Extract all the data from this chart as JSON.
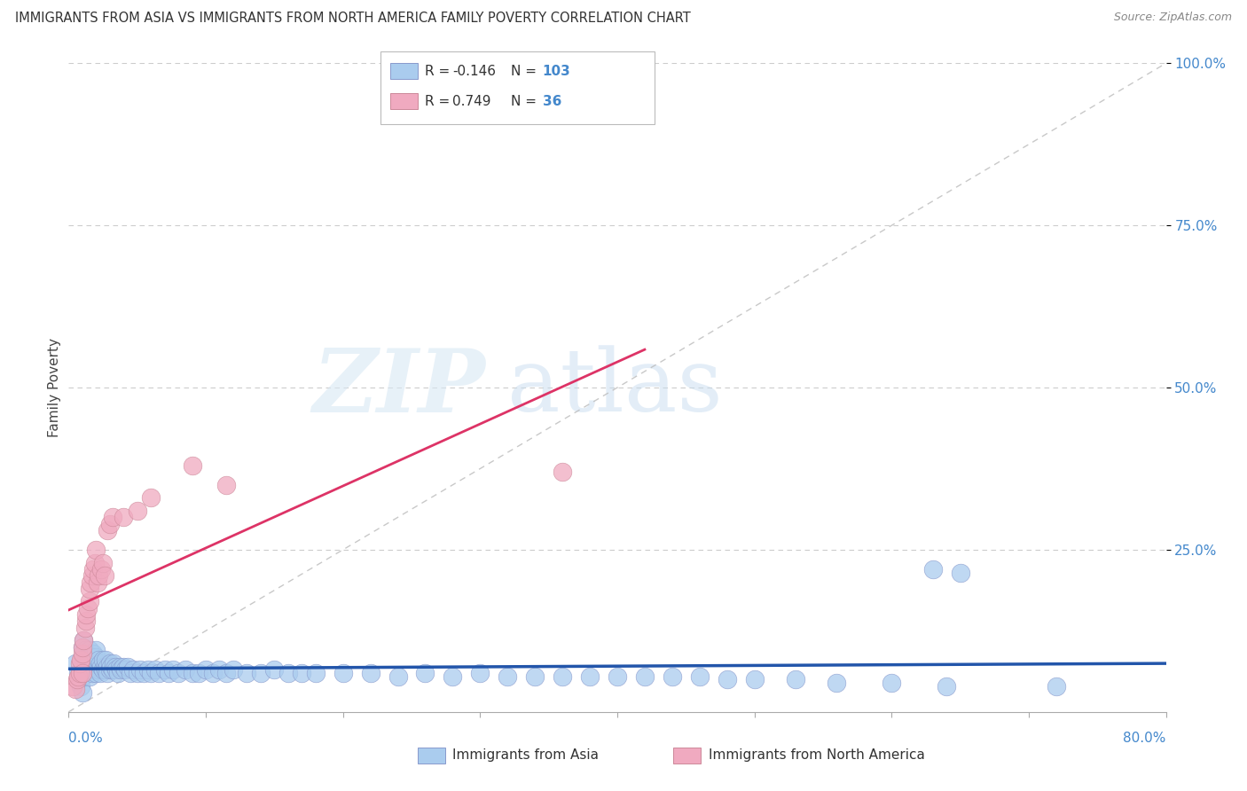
{
  "title": "IMMIGRANTS FROM ASIA VS IMMIGRANTS FROM NORTH AMERICA FAMILY POVERTY CORRELATION CHART",
  "source": "Source: ZipAtlas.com",
  "ylabel": "Family Poverty",
  "xlim": [
    0.0,
    0.8
  ],
  "ylim": [
    0.0,
    1.0
  ],
  "legend_R_asia": "-0.146",
  "legend_N_asia": "103",
  "legend_R_namerica": "0.749",
  "legend_N_namerica": "36",
  "color_asia": "#aaccee",
  "color_namerica": "#f0aac0",
  "color_asia_line": "#2255aa",
  "color_namerica_line": "#dd3366",
  "color_diagonal": "#bbbbbb",
  "watermark_zip": "ZIP",
  "watermark_atlas": "atlas",
  "asia_x": [
    0.005,
    0.007,
    0.008,
    0.009,
    0.01,
    0.01,
    0.01,
    0.01,
    0.01,
    0.011,
    0.012,
    0.012,
    0.013,
    0.015,
    0.015,
    0.015,
    0.015,
    0.016,
    0.017,
    0.017,
    0.018,
    0.018,
    0.019,
    0.02,
    0.02,
    0.02,
    0.02,
    0.021,
    0.022,
    0.022,
    0.023,
    0.023,
    0.024,
    0.025,
    0.025,
    0.026,
    0.027,
    0.027,
    0.028,
    0.028,
    0.03,
    0.03,
    0.031,
    0.032,
    0.033,
    0.034,
    0.035,
    0.036,
    0.037,
    0.038,
    0.04,
    0.041,
    0.043,
    0.045,
    0.047,
    0.05,
    0.052,
    0.055,
    0.058,
    0.06,
    0.063,
    0.066,
    0.07,
    0.073,
    0.076,
    0.08,
    0.085,
    0.09,
    0.095,
    0.1,
    0.105,
    0.11,
    0.115,
    0.12,
    0.13,
    0.14,
    0.15,
    0.16,
    0.17,
    0.18,
    0.2,
    0.22,
    0.24,
    0.26,
    0.28,
    0.3,
    0.32,
    0.34,
    0.36,
    0.38,
    0.4,
    0.42,
    0.44,
    0.46,
    0.48,
    0.5,
    0.53,
    0.56,
    0.6,
    0.64,
    0.63,
    0.65,
    0.72
  ],
  "asia_y": [
    0.075,
    0.06,
    0.05,
    0.04,
    0.03,
    0.055,
    0.07,
    0.085,
    0.1,
    0.11,
    0.065,
    0.095,
    0.075,
    0.055,
    0.065,
    0.08,
    0.095,
    0.07,
    0.06,
    0.085,
    0.075,
    0.09,
    0.065,
    0.06,
    0.075,
    0.085,
    0.095,
    0.07,
    0.065,
    0.08,
    0.06,
    0.075,
    0.07,
    0.065,
    0.08,
    0.07,
    0.065,
    0.08,
    0.07,
    0.06,
    0.065,
    0.075,
    0.07,
    0.065,
    0.075,
    0.07,
    0.065,
    0.06,
    0.07,
    0.065,
    0.07,
    0.065,
    0.07,
    0.06,
    0.065,
    0.06,
    0.065,
    0.06,
    0.065,
    0.06,
    0.065,
    0.06,
    0.065,
    0.06,
    0.065,
    0.06,
    0.065,
    0.06,
    0.06,
    0.065,
    0.06,
    0.065,
    0.06,
    0.065,
    0.06,
    0.06,
    0.065,
    0.06,
    0.06,
    0.06,
    0.06,
    0.06,
    0.055,
    0.06,
    0.055,
    0.06,
    0.055,
    0.055,
    0.055,
    0.055,
    0.055,
    0.055,
    0.055,
    0.055,
    0.05,
    0.05,
    0.05,
    0.045,
    0.045,
    0.04,
    0.22,
    0.215,
    0.04
  ],
  "namerica_x": [
    0.003,
    0.005,
    0.006,
    0.007,
    0.008,
    0.008,
    0.009,
    0.01,
    0.01,
    0.01,
    0.011,
    0.012,
    0.013,
    0.013,
    0.014,
    0.015,
    0.015,
    0.016,
    0.017,
    0.018,
    0.019,
    0.02,
    0.021,
    0.022,
    0.024,
    0.025,
    0.026,
    0.028,
    0.03,
    0.032,
    0.04,
    0.05,
    0.06,
    0.09,
    0.115,
    0.36
  ],
  "namerica_y": [
    0.04,
    0.035,
    0.05,
    0.055,
    0.06,
    0.075,
    0.08,
    0.09,
    0.06,
    0.1,
    0.11,
    0.13,
    0.14,
    0.15,
    0.16,
    0.17,
    0.19,
    0.2,
    0.21,
    0.22,
    0.23,
    0.25,
    0.2,
    0.21,
    0.22,
    0.23,
    0.21,
    0.28,
    0.29,
    0.3,
    0.3,
    0.31,
    0.33,
    0.38,
    0.35,
    0.37
  ]
}
